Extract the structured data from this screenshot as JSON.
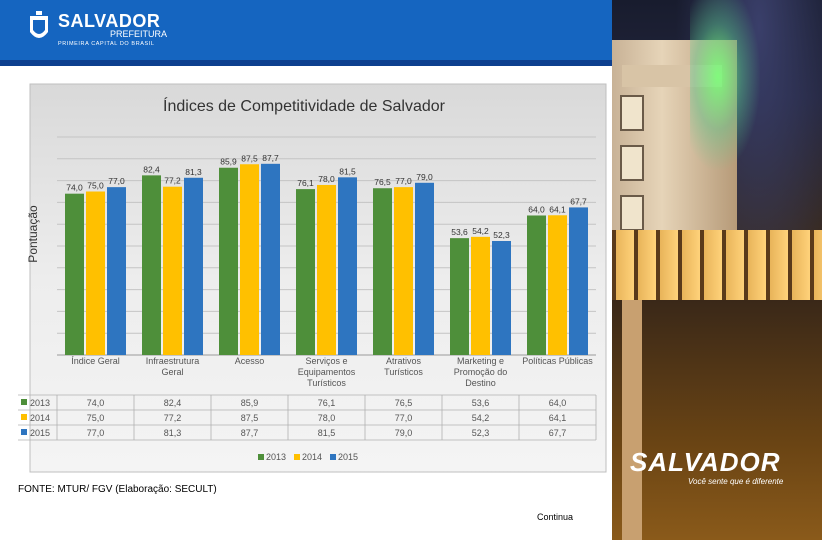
{
  "header": {
    "brand_name": "SALVADOR",
    "brand_sub": "PREFEITURA",
    "brand_tagline": "PRIMEIRA CAPITAL DO BRASIL"
  },
  "chart_data": {
    "type": "bar",
    "title": "Índices de Competitividade de Salvador",
    "ylabel": "Pontuação",
    "ylim": [
      0,
      100
    ],
    "categories": [
      [
        "Índice Geral"
      ],
      [
        "Infraestrutura",
        "Geral"
      ],
      [
        "Acesso"
      ],
      [
        "Serviços e",
        "Equipamentos",
        "Turísticos"
      ],
      [
        "Atrativos",
        "Turísticos"
      ],
      [
        "Marketing e",
        "Promoção do",
        "Destino"
      ],
      [
        "Políticas Públicas"
      ]
    ],
    "series": [
      {
        "name": "2013",
        "color": "#4e8f3a",
        "labels": [
          "74,0",
          "82,4",
          "85,9",
          "76,1",
          "76,5",
          "53,6",
          "64,0"
        ],
        "values": [
          74.0,
          82.4,
          85.9,
          76.1,
          76.5,
          53.6,
          64.0
        ]
      },
      {
        "name": "2014",
        "color": "#ffc000",
        "labels": [
          "75,0",
          "77,2",
          "87,5",
          "78,0",
          "77,0",
          "54,2",
          "64,1"
        ],
        "values": [
          75.0,
          77.2,
          87.5,
          78.0,
          77.0,
          54.2,
          64.1
        ]
      },
      {
        "name": "2015",
        "color": "#2e75c0",
        "labels": [
          "77,0",
          "81,3",
          "87,7",
          "81,5",
          "79,0",
          "52,3",
          "67,7"
        ],
        "values": [
          77.0,
          81.3,
          87.7,
          81.5,
          79.0,
          52.3,
          67.7
        ]
      }
    ],
    "legend": [
      "2013",
      "2014",
      "2015"
    ],
    "legend_position": "bottom"
  },
  "footer": {
    "source": "FONTE: MTUR/ FGV (Elaboração: SECULT)",
    "continue": "Continua"
  },
  "photo": {
    "brand": "SALVADOR",
    "tagline": "Você sente que é diferente"
  }
}
